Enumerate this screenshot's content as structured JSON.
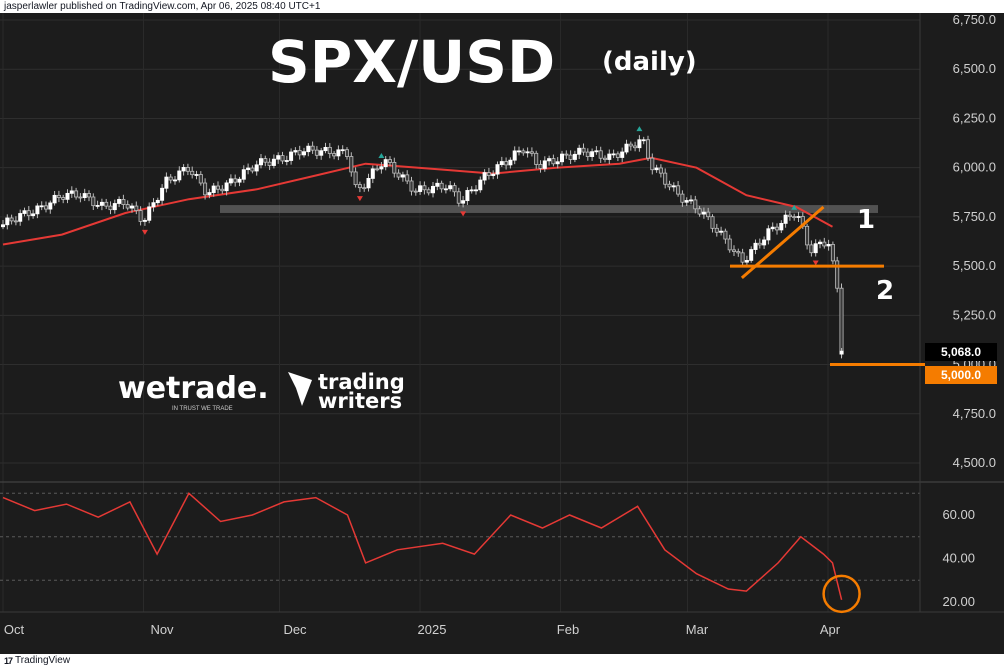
{
  "header": {
    "publish_info": "jasperlawler published on TradingView.com, Apr 06, 2025 08:40 UTC+1"
  },
  "footer": {
    "brand": "TradingView",
    "logo_glyph": "17"
  },
  "overlay": {
    "title": "SPX/USD",
    "subtitle": "(daily)",
    "label_1": "1",
    "label_2": "2",
    "wetrade_logo": "wetrade.",
    "wetrade_tagline": "IN TRUST WE TRADE",
    "trading_writers_line1": "trading",
    "trading_writers_line2": "writers"
  },
  "colors": {
    "background": "#1c1c1c",
    "candle_up": "#ffffff",
    "candle_down": "#bdbdbd",
    "moving_average": "#e53935",
    "rsi_line": "#e53935",
    "annotation_orange": "#f57c00",
    "marker_up": "#26a69a",
    "marker_down": "#e53935",
    "resistance_band": "#808080"
  },
  "price_badges": {
    "last_price": "5,068.0",
    "level_5000": "5,000.0"
  },
  "chart_data": [
    {
      "type": "candlestick",
      "title": "SPX/USD",
      "subtitle": "(daily)",
      "x_ticks": [
        "Oct",
        "Nov",
        "Dec",
        "2025",
        "Feb",
        "Mar",
        "Apr"
      ],
      "y_ticks": [
        "4,500.0",
        "4,750.0",
        "5,000.0",
        "5,250.0",
        "5,500.0",
        "5,750.0",
        "6,000.0",
        "6,250.0",
        "6,500.0",
        "6,750.0"
      ],
      "ylim": [
        4500,
        6750
      ],
      "grid": true,
      "series": [
        {
          "name": "SPX/USD",
          "dates": [
            "2024-10-01",
            "2024-10-04",
            "2024-10-09",
            "2024-10-14",
            "2024-10-18",
            "2024-10-23",
            "2024-10-28",
            "2024-11-01",
            "2024-11-06",
            "2024-11-11",
            "2024-11-15",
            "2024-11-20",
            "2024-11-26",
            "2024-12-02",
            "2024-12-06",
            "2024-12-11",
            "2024-12-16",
            "2024-12-18",
            "2024-12-24",
            "2024-12-31",
            "2025-01-07",
            "2025-01-10",
            "2025-01-15",
            "2025-01-21",
            "2025-01-24",
            "2025-01-27",
            "2025-01-31",
            "2025-02-06",
            "2025-02-12",
            "2025-02-19",
            "2025-02-21",
            "2025-02-27",
            "2025-03-04",
            "2025-03-10",
            "2025-03-13",
            "2025-03-19",
            "2025-03-25",
            "2025-03-28",
            "2025-04-01",
            "2025-04-03",
            "2025-04-04"
          ],
          "close": [
            5710,
            5750,
            5790,
            5860,
            5865,
            5800,
            5825,
            5730,
            5930,
            6001,
            5870,
            5920,
            6020,
            6047,
            6090,
            6082,
            6074,
            5872,
            6040,
            5882,
            5910,
            5827,
            5950,
            6049,
            6101,
            6012,
            6040,
            6083,
            6050,
            6144,
            6013,
            5861,
            5778,
            5614,
            5521,
            5675,
            5777,
            5580,
            5633,
            5396,
            5068
          ]
        },
        {
          "name": "Moving average",
          "dates": [
            "2024-10-01",
            "2024-10-14",
            "2024-10-28",
            "2024-11-11",
            "2024-11-26",
            "2024-12-09",
            "2024-12-20",
            "2025-01-06",
            "2025-01-17",
            "2025-01-31",
            "2025-02-14",
            "2025-02-21",
            "2025-03-03",
            "2025-03-14",
            "2025-03-25",
            "2025-04-02"
          ],
          "values": [
            5610,
            5660,
            5770,
            5840,
            5890,
            5960,
            6020,
            5990,
            5970,
            6000,
            6020,
            6050,
            6000,
            5860,
            5800,
            5700
          ]
        }
      ],
      "annotations": [
        {
          "label": "1",
          "type": "rising trendline",
          "from": {
            "date": "2025-03-13",
            "price": 5440
          },
          "to": {
            "date": "2025-03-31",
            "price": 5800
          }
        },
        {
          "type": "horizontal level",
          "price": 5500
        },
        {
          "label": "2",
          "type": "horizontal level",
          "price": 5000
        },
        {
          "type": "resistance band",
          "price_low": 5770,
          "price_high": 5810
        }
      ]
    },
    {
      "type": "line",
      "title": "",
      "y_ticks": [
        "20.00",
        "40.00",
        "60.00"
      ],
      "ylim": [
        10,
        75
      ],
      "reference_levels": [
        30,
        50,
        70
      ],
      "grid": true,
      "series": [
        {
          "name": "",
          "dates": [
            "2024-10-01",
            "2024-10-08",
            "2024-10-15",
            "2024-10-22",
            "2024-10-29",
            "2024-11-04",
            "2024-11-11",
            "2024-11-18",
            "2024-11-25",
            "2024-12-02",
            "2024-12-09",
            "2024-12-16",
            "2024-12-20",
            "2024-12-27",
            "2025-01-06",
            "2025-01-13",
            "2025-01-21",
            "2025-01-28",
            "2025-02-03",
            "2025-02-10",
            "2025-02-18",
            "2025-02-24",
            "2025-03-03",
            "2025-03-10",
            "2025-03-14",
            "2025-03-21",
            "2025-03-26",
            "2025-03-31",
            "2025-04-02",
            "2025-04-04"
          ],
          "values": [
            68,
            62,
            65,
            59,
            66,
            42,
            70,
            57,
            60,
            66,
            68,
            60,
            38,
            44,
            47,
            42,
            60,
            54,
            60,
            54,
            64,
            44,
            33,
            26,
            25,
            38,
            50,
            42,
            38,
            21
          ]
        }
      ]
    }
  ]
}
